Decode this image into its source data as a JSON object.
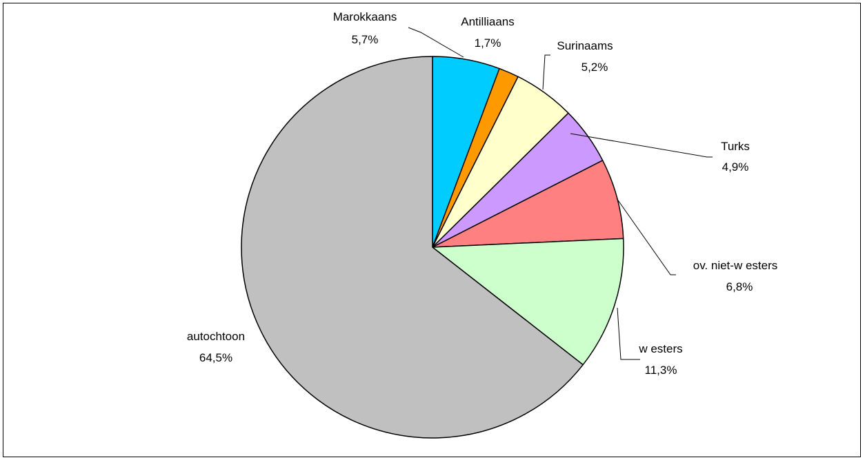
{
  "chart_data": {
    "type": "pie",
    "title": "",
    "start_angle_deg": 0,
    "direction": "clockwise",
    "legend": "none",
    "slices": [
      {
        "name": "Marokkaans",
        "value": 5.7,
        "label": "5,7%",
        "color": "#00CCFF"
      },
      {
        "name": "Antilliaans",
        "value": 1.7,
        "label": "1,7%",
        "color": "#FF9900"
      },
      {
        "name": "Surinaams",
        "value": 5.2,
        "label": "5,2%",
        "color": "#FFFFCC"
      },
      {
        "name": "Turks",
        "value": 4.9,
        "label": "4,9%",
        "color": "#CC99FF"
      },
      {
        "name": "ov. niet-w esters",
        "value": 6.8,
        "label": "6,8%",
        "color": "#FF8080"
      },
      {
        "name": "w esters",
        "value": 11.3,
        "label": "11,3%",
        "color": "#CCFFCC"
      },
      {
        "name": "autochtoon",
        "value": 64.5,
        "label": "64,5%",
        "color": "#C0C0C0"
      }
    ]
  }
}
